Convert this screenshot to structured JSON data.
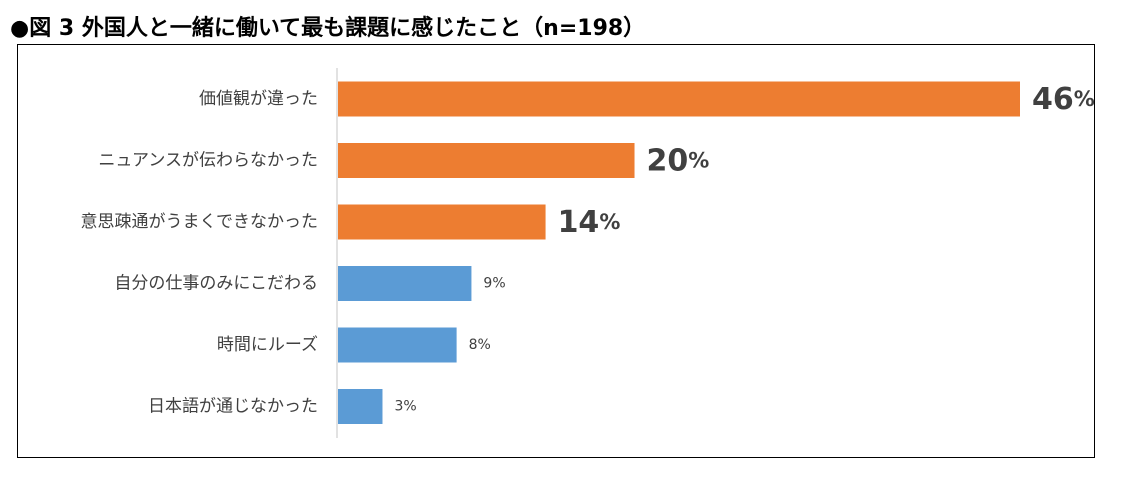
{
  "title": "●図 3  外国人と一緒に働いて最も課題に感じたこと（n=198）",
  "chart_data": {
    "type": "bar",
    "orientation": "horizontal",
    "categories": [
      "価値観が違った",
      "ニュアンスが伝わらなかった",
      "意思疎通がうまくできなかった",
      "自分の仕事のみにこだわる",
      "時間にルーズ",
      "日本語が通じなかった"
    ],
    "values": [
      46,
      20,
      14,
      9,
      8,
      3
    ],
    "value_labels": [
      "46%",
      "20%",
      "14%",
      "9%",
      "8%",
      "3%"
    ],
    "unit": "%",
    "bar_colors": [
      "#ED7D31",
      "#ED7D31",
      "#ED7D31",
      "#5B9BD5",
      "#5B9BD5",
      "#5B9BD5"
    ],
    "xlim": [
      0,
      46
    ],
    "grid": false,
    "legend": "none"
  }
}
